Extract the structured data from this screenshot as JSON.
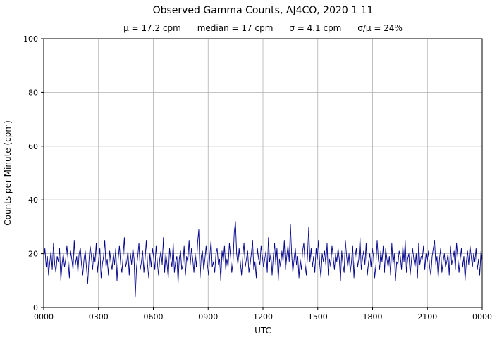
{
  "chart_data": {
    "type": "line",
    "title": "Observed Gamma Counts, AJ4CO, 2020 1 11",
    "subtitle": "μ = 17.2 cpm      median = 17 cpm      σ = 4.1 cpm      σ/μ = 24%",
    "stats": {
      "mean_cpm": 17.2,
      "median_cpm": 17,
      "sigma_cpm": 4.1,
      "sigma_over_mu_pct": 24
    },
    "xlabel": "UTC",
    "ylabel": "Counts per Minute (cpm)",
    "ylim": [
      0,
      100
    ],
    "y_ticks": [
      0,
      20,
      40,
      60,
      80,
      100
    ],
    "x_tick_labels": [
      "0000",
      "0300",
      "0600",
      "0900",
      "1200",
      "1500",
      "1800",
      "2100",
      "0000"
    ],
    "grid": true,
    "line_color": "#00008b",
    "series": [
      {
        "name": "observed gamma counts",
        "values": [
          18,
          22,
          15,
          19,
          12,
          17,
          21,
          14,
          24,
          16,
          13,
          19,
          17,
          22,
          10,
          16,
          20,
          15,
          18,
          23,
          17,
          11,
          21,
          18,
          14,
          25,
          16,
          19,
          13,
          20,
          22,
          16,
          12,
          18,
          21,
          15,
          9,
          17,
          23,
          19,
          14,
          20,
          17,
          24,
          13,
          18,
          22,
          11,
          16,
          19,
          25,
          15,
          18,
          12,
          21,
          17,
          14,
          20,
          16,
          22,
          10,
          18,
          23,
          16,
          13,
          19,
          26,
          15,
          17,
          21,
          12,
          20,
          16,
          22,
          18,
          4,
          15,
          19,
          24,
          14,
          17,
          21,
          13,
          18,
          25,
          16,
          11,
          20,
          15,
          22,
          19,
          14,
          23,
          17,
          12,
          18,
          21,
          16,
          26,
          13,
          20,
          16,
          11,
          22,
          18,
          15,
          24,
          13,
          17,
          19,
          9,
          18,
          21,
          14,
          16,
          23,
          12,
          19,
          17,
          25,
          16,
          22,
          18,
          13,
          20,
          15,
          24,
          29,
          11,
          19,
          21,
          14,
          18,
          23,
          16,
          12,
          19,
          25,
          15,
          17,
          13,
          20,
          22,
          16,
          18,
          10,
          21,
          17,
          23,
          14,
          18,
          15,
          24,
          19,
          13,
          17,
          28,
          32,
          20,
          16,
          22,
          17,
          12,
          19,
          24,
          15,
          18,
          21,
          13,
          16,
          20,
          25,
          14,
          17,
          11,
          22,
          18,
          16,
          23,
          19,
          15,
          18,
          21,
          13,
          26,
          17,
          20,
          12,
          19,
          24,
          16,
          22,
          10,
          18,
          15,
          21,
          17,
          25,
          14,
          19,
          23,
          17,
          31,
          20,
          13,
          18,
          22,
          16,
          19,
          11,
          18,
          14,
          21,
          24,
          16,
          12,
          19,
          30,
          17,
          22,
          15,
          19,
          13,
          22,
          18,
          25,
          16,
          11,
          20,
          17,
          21,
          16,
          24,
          12,
          18,
          15,
          23,
          19,
          14,
          20,
          17,
          22,
          18,
          10,
          21,
          16,
          13,
          25,
          19,
          15,
          20,
          13,
          17,
          23,
          11,
          19,
          22,
          15,
          18,
          26,
          14,
          18,
          21,
          16,
          24,
          12,
          17,
          20,
          15,
          22,
          19,
          11,
          16,
          25,
          18,
          14,
          21,
          17,
          23,
          13,
          22,
          18,
          15,
          19,
          12,
          24,
          16,
          20,
          10,
          17,
          16,
          21,
          19,
          14,
          23,
          17,
          25,
          13,
          18,
          20,
          12,
          17,
          22,
          18,
          15,
          20,
          11,
          24,
          16,
          19,
          18,
          23,
          14,
          20,
          17,
          21,
          15,
          12,
          19,
          22,
          25,
          16,
          19,
          11,
          18,
          22,
          13,
          17,
          20,
          15,
          17,
          20,
          12,
          23,
          16,
          18,
          21,
          14,
          24,
          19,
          13,
          18,
          22,
          15,
          19,
          10,
          17,
          21,
          16,
          23,
          19,
          15,
          20,
          17,
          22,
          14,
          18,
          12,
          21,
          17
        ]
      }
    ]
  }
}
